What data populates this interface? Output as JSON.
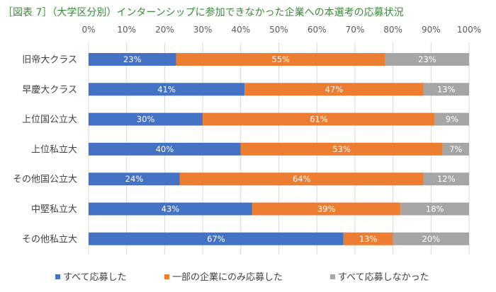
{
  "chart_data": {
    "type": "bar",
    "orientation": "horizontal",
    "stacked": "100%",
    "title": "［図表 7］（大学区分別）インターンシップに参加できなかった企業への本選考の応募状況",
    "categories": [
      "旧帝大クラス",
      "早慶大クラス",
      "上位国公立大",
      "上位私立大",
      "その他国公立大",
      "中堅私立大",
      "その他私立大"
    ],
    "series": [
      {
        "name": "すべて応募した",
        "color": "#4472c4",
        "values": [
          23,
          41,
          30,
          40,
          24,
          43,
          67
        ]
      },
      {
        "name": "一部の企業にのみ応募した",
        "color": "#ed7d31",
        "values": [
          55,
          47,
          61,
          53,
          64,
          39,
          13
        ]
      },
      {
        "name": "すべて応募しなかった",
        "color": "#a5a5a5",
        "values": [
          23,
          13,
          9,
          7,
          12,
          18,
          20
        ]
      }
    ],
    "data_labels": [
      [
        "23%",
        "41%",
        "30%",
        "40%",
        "24%",
        "43%",
        "67%"
      ],
      [
        "55%",
        "47%",
        "61%",
        "53%",
        "64%",
        "39%",
        "13%"
      ],
      [
        "23%",
        "13%",
        "9%",
        "7%",
        "12%",
        "18%",
        "20%"
      ]
    ],
    "x_ticks": [
      "0%",
      "10%",
      "20%",
      "30%",
      "40%",
      "50%",
      "60%",
      "70%",
      "80%",
      "90%",
      "100%"
    ],
    "xlim": [
      0,
      100
    ],
    "grid": true,
    "legend_position": "bottom"
  }
}
